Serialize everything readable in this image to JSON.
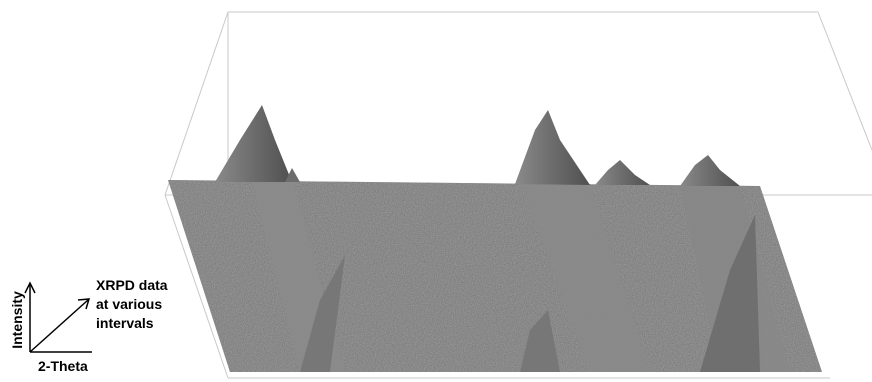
{
  "legend": {
    "y_label": "Intensity",
    "x_label": "2-Theta",
    "z_label_lines": [
      "XRPD data",
      "at various",
      "intervals"
    ]
  }
}
